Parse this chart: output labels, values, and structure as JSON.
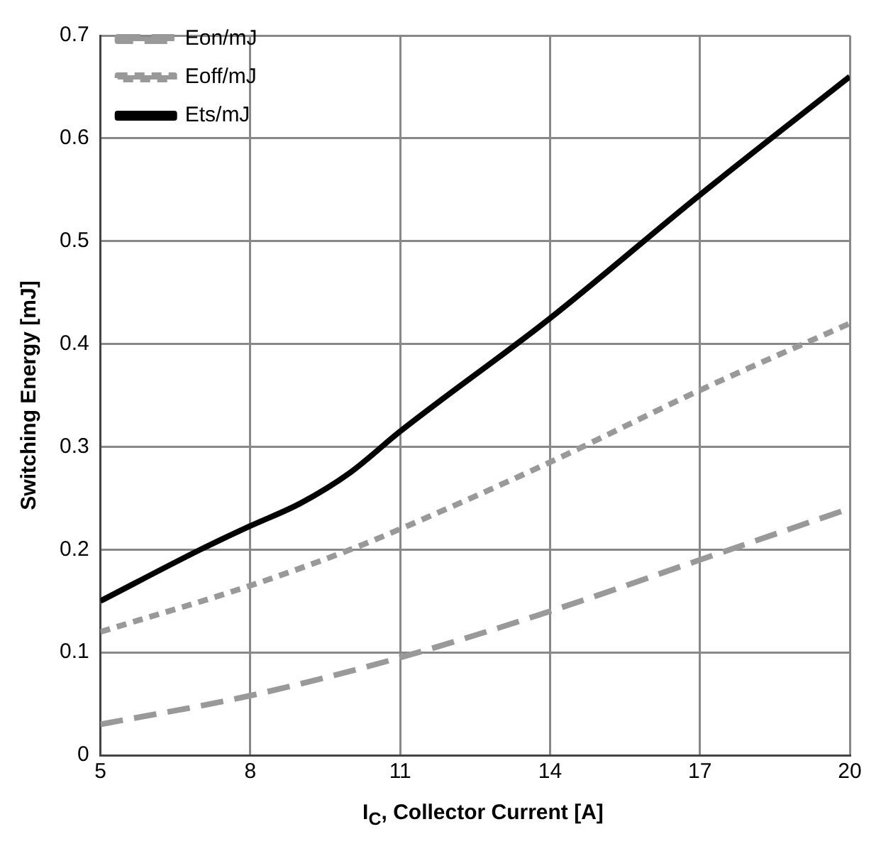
{
  "chart_data": {
    "type": "line",
    "xlabel": "I$_{C}$, Collector Current [A]",
    "ylabel": "Switching Energy [mJ]",
    "xlim": [
      5,
      20
    ],
    "xticks": [
      5,
      8,
      11,
      14,
      17,
      20
    ],
    "ylim": [
      0,
      0.7
    ],
    "yticks": [
      0,
      0.1,
      0.2,
      0.3,
      0.4,
      0.5,
      0.6,
      0.7
    ],
    "grid": true,
    "legend": "top left",
    "marker": "none",
    "series": [
      {
        "name": "Eon/mJ",
        "color": "#999999",
        "line_style": "dashed",
        "x": [
          5,
          8,
          11,
          14,
          17,
          20
        ],
        "values": [
          0.03,
          0.058,
          0.095,
          0.14,
          0.19,
          0.24
        ]
      },
      {
        "name": "Eoff/mJ",
        "color": "#999999",
        "line_style": "dotted",
        "x": [
          5,
          8,
          10,
          11,
          14,
          17,
          20
        ],
        "values": [
          0.12,
          0.165,
          0.2,
          0.22,
          0.285,
          0.355,
          0.42
        ]
      },
      {
        "name": "Ets/mJ",
        "color": "#000000",
        "line_style": "solid",
        "x": [
          5,
          7,
          8,
          9,
          10,
          11,
          14,
          17,
          20
        ],
        "values": [
          0.15,
          0.2,
          0.223,
          0.245,
          0.275,
          0.315,
          0.425,
          0.545,
          0.66
        ]
      }
    ]
  }
}
